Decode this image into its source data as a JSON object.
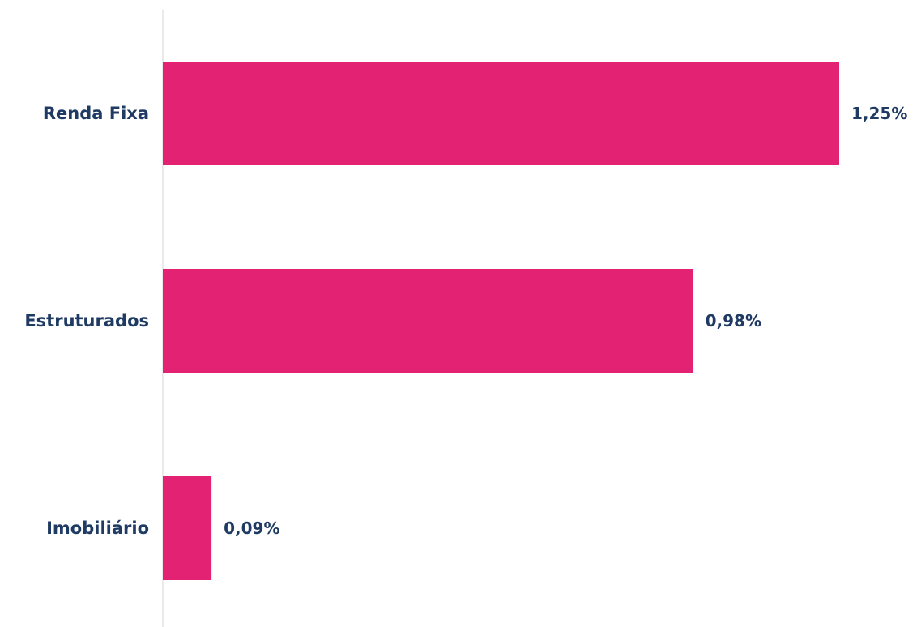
{
  "colors": {
    "bar": "#e32273",
    "label": "#1f3a63",
    "axis": "#e3e3e3"
  },
  "chart_data": {
    "type": "bar",
    "orientation": "horizontal",
    "categories": [
      "Renda Fixa",
      "Estruturados",
      "Imobiliário"
    ],
    "values": [
      1.25,
      0.98,
      0.09
    ],
    "value_labels": [
      "1,25%",
      "0,98%",
      "0,09%"
    ],
    "title": "",
    "xlabel": "",
    "ylabel": "",
    "xlim": [
      0,
      1.25
    ],
    "grid": false,
    "legend": "none"
  }
}
